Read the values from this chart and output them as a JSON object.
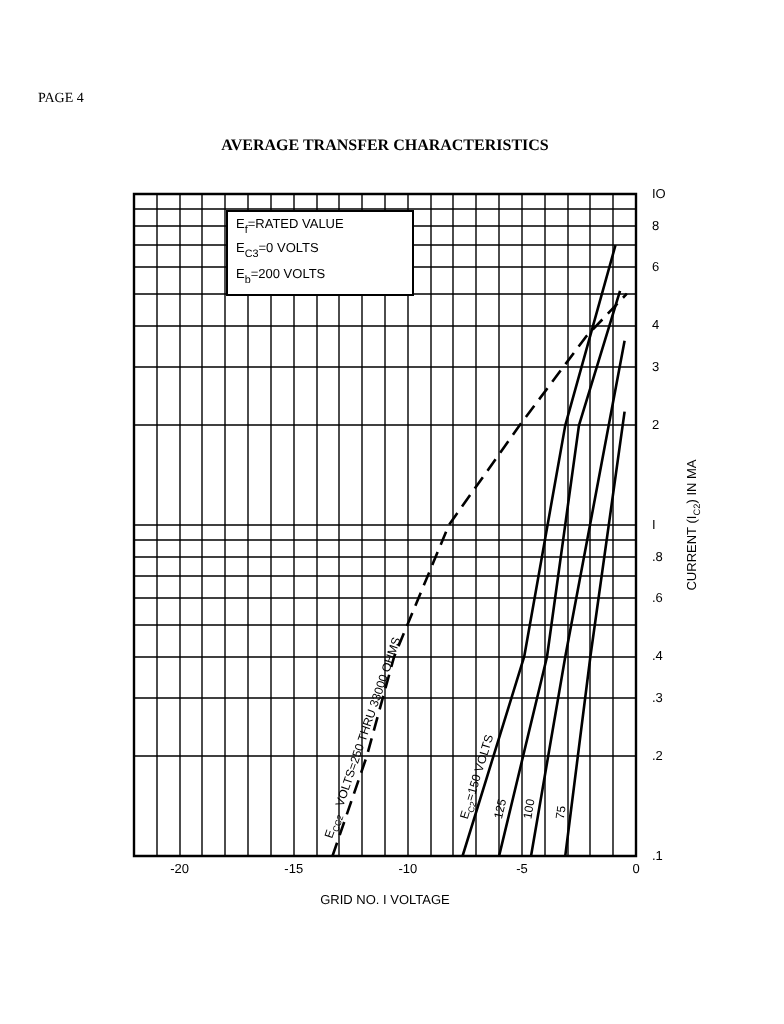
{
  "chart_data": {
    "type": "line",
    "title": "AVERAGE TRANSFER CHARACTERISTICS",
    "xlabel": "GRID NO. I VOLTAGE",
    "ylabel": "CURRENT (I$_{C2}$) IN MA",
    "annotations": [
      "PAGE 4",
      "E$_{f}$=RATED VALUE",
      "E$_{C3}$=0 VOLTS",
      "E$_{b}$=200 VOLTS"
    ],
    "log": "y",
    "grid": true,
    "legend": false,
    "marker": "none",
    "xlim": [
      -22,
      0
    ],
    "xticks": [
      {
        "value": -22,
        "label": null
      },
      {
        "value": -21,
        "label": null
      },
      -20,
      {
        "value": -19,
        "label": null
      },
      {
        "value": -18,
        "label": null
      },
      {
        "value": -17,
        "label": null
      },
      {
        "value": -16,
        "label": null
      },
      -15,
      {
        "value": -14,
        "label": null
      },
      {
        "value": -13,
        "label": null
      },
      {
        "value": -12,
        "label": null
      },
      {
        "value": -11,
        "label": null
      },
      -10,
      {
        "value": -9,
        "label": null
      },
      {
        "value": -8,
        "label": null
      },
      {
        "value": -7,
        "label": null
      },
      {
        "value": -6,
        "label": null
      },
      -5,
      {
        "value": -4,
        "label": null
      },
      {
        "value": -3,
        "label": null
      },
      {
        "value": -2,
        "label": null
      },
      {
        "value": -1,
        "label": null
      },
      0
    ],
    "ylim": [
      0.1,
      10
    ],
    "yticks": [
      {
        "value": 0.1,
        "label": ".1"
      },
      {
        "value": 0.2,
        "label": ".2"
      },
      {
        "value": 0.3,
        "label": ".3"
      },
      {
        "value": 0.4,
        "label": ".4"
      },
      {
        "value": 0.5,
        "label": null
      },
      {
        "value": 0.6,
        "label": ".6"
      },
      {
        "value": 0.7,
        "label": null
      },
      {
        "value": 0.8,
        "label": ".8"
      },
      {
        "value": 0.9,
        "label": null
      },
      {
        "value": 1,
        "label": "I"
      },
      2,
      3,
      4,
      {
        "value": 5,
        "label": null
      },
      6,
      {
        "value": 7,
        "label": null
      },
      8,
      {
        "value": 9,
        "label": null
      },
      {
        "value": 10,
        "label": "IO"
      }
    ],
    "series": [
      {
        "name": "E$_{CC2}$ VOLTS=250 THRU 33000 OHMS",
        "color": "#000000",
        "line_style": "dashed",
        "x": [
          -13.3,
          -11.8,
          -10.6,
          -8.2,
          -5.1,
          -2.2,
          -0.4
        ],
        "values": [
          0.1,
          0.2,
          0.4,
          1,
          2,
          3.7,
          5
        ]
      },
      {
        "name": "E$_{C2}$=150 VOLTS",
        "color": "#000000",
        "line_style": "solid",
        "x": [
          -7.6,
          -4.9,
          -3.1,
          -0.9
        ],
        "values": [
          0.1,
          0.4,
          2,
          7
        ]
      },
      {
        "name": "125",
        "color": "#000000",
        "line_style": "solid",
        "x": [
          -6,
          -3.9,
          -2.5,
          -0.7
        ],
        "values": [
          0.1,
          0.4,
          2,
          5.1
        ]
      },
      {
        "name": "100",
        "color": "#000000",
        "line_style": "solid",
        "x": [
          -4.6,
          -3.1,
          -0.5
        ],
        "values": [
          0.1,
          0.4,
          3.6
        ]
      },
      {
        "name": "75",
        "color": "#000000",
        "line_style": "solid",
        "x": [
          -3.1,
          -2,
          -0.5
        ],
        "values": [
          0.1,
          0.4,
          2.2
        ]
      }
    ]
  }
}
